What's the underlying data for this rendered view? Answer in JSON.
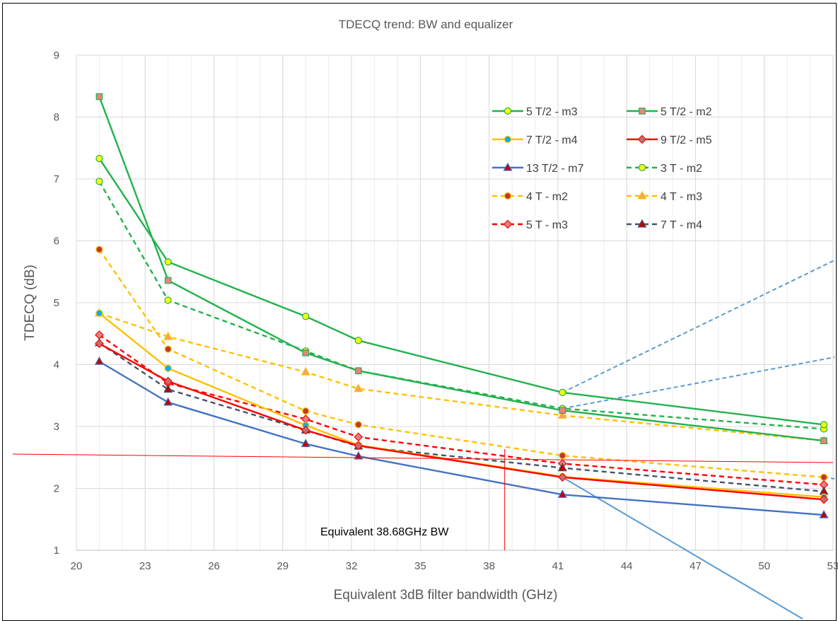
{
  "chart_data": {
    "type": "line",
    "title": "TDECQ trend: BW and equalizer",
    "xlabel": "Equivalent 3dB filter bandwidth (GHz)",
    "ylabel": "TDECQ (dB)",
    "xlim": [
      20,
      53
    ],
    "ylim": [
      1,
      9
    ],
    "x_ticks": [
      20,
      23,
      26,
      29,
      32,
      35,
      38,
      41,
      44,
      47,
      50,
      53
    ],
    "y_ticks": [
      1,
      2,
      3,
      4,
      5,
      6,
      7,
      8,
      9
    ],
    "grid": true,
    "legend_position": "top-right",
    "annotation": "Equivalent 38.68GHz BW",
    "reference_lines": {
      "threshold_y": 2.52,
      "bw_x": 38.68
    },
    "x": [
      21.0,
      24.0,
      30.0,
      32.3,
      41.2,
      52.6
    ],
    "series": [
      {
        "name": "5 T/2 - m3",
        "values": [
          7.33,
          5.66,
          4.78,
          4.39,
          3.55,
          3.03
        ],
        "color": "#22b24c",
        "dash": "solid",
        "marker": "circle",
        "marker_fill": "#ffff00"
      },
      {
        "name": "5 T/2 - m2",
        "values": [
          8.33,
          5.36,
          4.19,
          3.9,
          3.26,
          2.77
        ],
        "color": "#22b24c",
        "dash": "solid",
        "marker": "square",
        "marker_fill": "#f08080"
      },
      {
        "name": "7 T/2 - m4",
        "values": [
          4.83,
          3.94,
          3.02,
          2.7,
          2.19,
          1.86
        ],
        "color": "#ffc000",
        "dash": "solid",
        "marker": "circle",
        "marker_fill": "#00b0f0"
      },
      {
        "name": "9 T/2 - m5",
        "values": [
          4.34,
          3.73,
          2.94,
          2.69,
          2.18,
          1.82
        ],
        "color": "#ff0000",
        "dash": "solid",
        "marker": "diamond",
        "marker_fill": "#c07070"
      },
      {
        "name": "13 T/2 - m7",
        "values": [
          4.05,
          3.39,
          2.72,
          2.52,
          1.9,
          1.57
        ],
        "color": "#4472c4",
        "dash": "solid",
        "marker": "triangle",
        "marker_fill": "#c00000"
      },
      {
        "name": "3 T - m2",
        "values": [
          6.96,
          5.04,
          4.22,
          3.9,
          3.29,
          2.96
        ],
        "color": "#22b24c",
        "dash": "dashed",
        "marker": "circle",
        "marker_fill": "#ffff00"
      },
      {
        "name": "4 T - m2",
        "values": [
          5.86,
          4.25,
          3.25,
          3.03,
          2.53,
          2.18
        ],
        "color": "#ffc000",
        "dash": "dashed",
        "marker": "circle",
        "marker_fill": "#c0392b"
      },
      {
        "name": "4 T - m3",
        "values": [
          4.83,
          4.45,
          3.88,
          3.61,
          3.18,
          2.77
        ],
        "color": "#ffc000",
        "dash": "dashed",
        "marker": "triangle",
        "marker_fill": "#f4a460"
      },
      {
        "name": "5 T - m3",
        "values": [
          4.48,
          3.7,
          3.12,
          2.83,
          2.4,
          2.06
        ],
        "color": "#ff0000",
        "dash": "dashed",
        "marker": "diamond",
        "marker_fill": "#e08080"
      },
      {
        "name": "7 T - m4",
        "values": [
          4.35,
          3.6,
          2.94,
          2.68,
          2.33,
          1.95
        ],
        "color": "#44546a",
        "dash": "dashed",
        "marker": "triangle",
        "marker_fill": "#c00000"
      }
    ]
  }
}
